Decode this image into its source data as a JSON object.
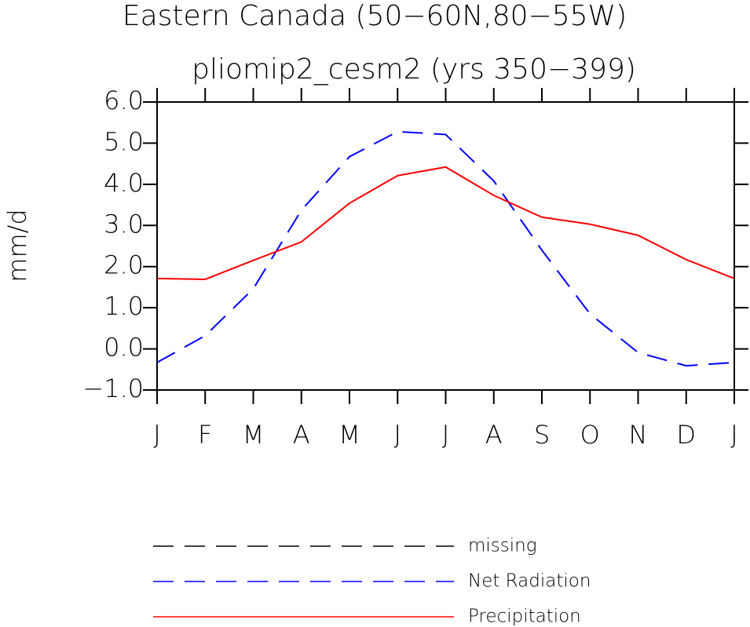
{
  "chart_data": {
    "type": "line",
    "title": "Eastern Canada (50−60N,80−55W)",
    "subtitle": "pliomip2_cesm2 (yrs 350−399)",
    "y_label": "mm/d",
    "categories": [
      "J",
      "F",
      "M",
      "A",
      "M",
      "J",
      "J",
      "A",
      "S",
      "O",
      "N",
      "D",
      "J"
    ],
    "ylim": [
      -1,
      6
    ],
    "yticks": [
      {
        "value": -1,
        "label": "−1.0"
      },
      {
        "value": 0,
        "label": "0.0"
      },
      {
        "value": 1,
        "label": "1.0"
      },
      {
        "value": 2,
        "label": "2.0"
      },
      {
        "value": 3,
        "label": "3.0"
      },
      {
        "value": 4,
        "label": "4.0"
      },
      {
        "value": 5,
        "label": "5.0"
      },
      {
        "value": 6,
        "label": "6.0"
      }
    ],
    "series": [
      {
        "name": "missing",
        "color": "#000000",
        "dash": "dashed",
        "values": [
          null,
          null,
          null,
          null,
          null,
          null,
          null,
          null,
          null,
          null,
          null,
          null,
          null
        ]
      },
      {
        "name": "Net Radiation",
        "color": "#0000ff",
        "dash": "dashed",
        "values": [
          -0.33,
          0.32,
          1.46,
          3.37,
          4.67,
          5.28,
          5.21,
          4.08,
          2.4,
          0.85,
          -0.09,
          -0.41,
          -0.33
        ]
      },
      {
        "name": "Precipitation",
        "color": "#ff0000",
        "dash": "solid",
        "values": [
          1.71,
          1.69,
          2.15,
          2.6,
          3.54,
          4.21,
          4.42,
          3.73,
          3.2,
          3.03,
          2.76,
          2.17,
          1.71
        ]
      }
    ]
  }
}
